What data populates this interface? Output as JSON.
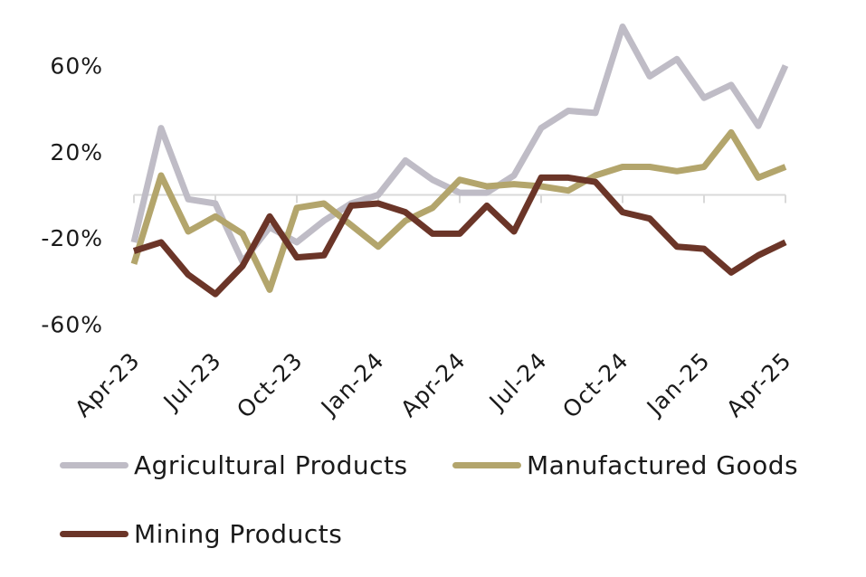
{
  "chart_data": {
    "type": "line",
    "x": [
      "Apr-23",
      "May-23",
      "Jun-23",
      "Jul-23",
      "Aug-23",
      "Sep-23",
      "Oct-23",
      "Nov-23",
      "Dec-23",
      "Jan-24",
      "Feb-24",
      "Mar-24",
      "Apr-24",
      "May-24",
      "Jun-24",
      "Jul-24",
      "Aug-24",
      "Sep-24",
      "Oct-24",
      "Nov-24",
      "Dec-24",
      "Jan-25",
      "Feb-25",
      "Mar-25",
      "Apr-25"
    ],
    "xtick_labels": [
      "Apr-23",
      "Jul-23",
      "Oct-23",
      "Jan-24",
      "Apr-24",
      "Jul-24",
      "Oct-24",
      "Jan-25",
      "Apr-25"
    ],
    "xtick_every": 3,
    "yticks": [
      60,
      20,
      -20,
      -60
    ],
    "ytick_labels": [
      "60%",
      "20%",
      "-20%",
      "-60%"
    ],
    "ylim": [
      -69,
      82
    ],
    "series": [
      {
        "name": "Agricultural Products",
        "color": "#bfbcc6",
        "values": [
          -22,
          31,
          -2,
          -4,
          -31,
          -15,
          -22,
          -12,
          -4,
          0,
          16,
          7,
          1,
          1,
          9,
          31,
          39,
          38,
          78,
          55,
          63,
          45,
          51,
          32,
          60
        ]
      },
      {
        "name": "Manufactured Goods",
        "color": "#b3a56c",
        "values": [
          -32,
          9,
          -17,
          -10,
          -18,
          -44,
          -6,
          -4,
          -14,
          -24,
          -12,
          -6,
          7,
          4,
          5,
          4,
          2,
          9,
          13,
          13,
          11,
          13,
          29,
          8,
          13
        ]
      },
      {
        "name": "Mining Products",
        "color": "#6b3528",
        "values": [
          -26,
          -22,
          -37,
          -46,
          -33,
          -10,
          -29,
          -28,
          -5,
          -4,
          -8,
          -18,
          -18,
          -5,
          -17,
          8,
          8,
          6,
          -8,
          -11,
          -24,
          -25,
          -36,
          -28,
          -22
        ]
      }
    ],
    "grid": false,
    "zero_line": true,
    "legend_position": "bottom"
  }
}
